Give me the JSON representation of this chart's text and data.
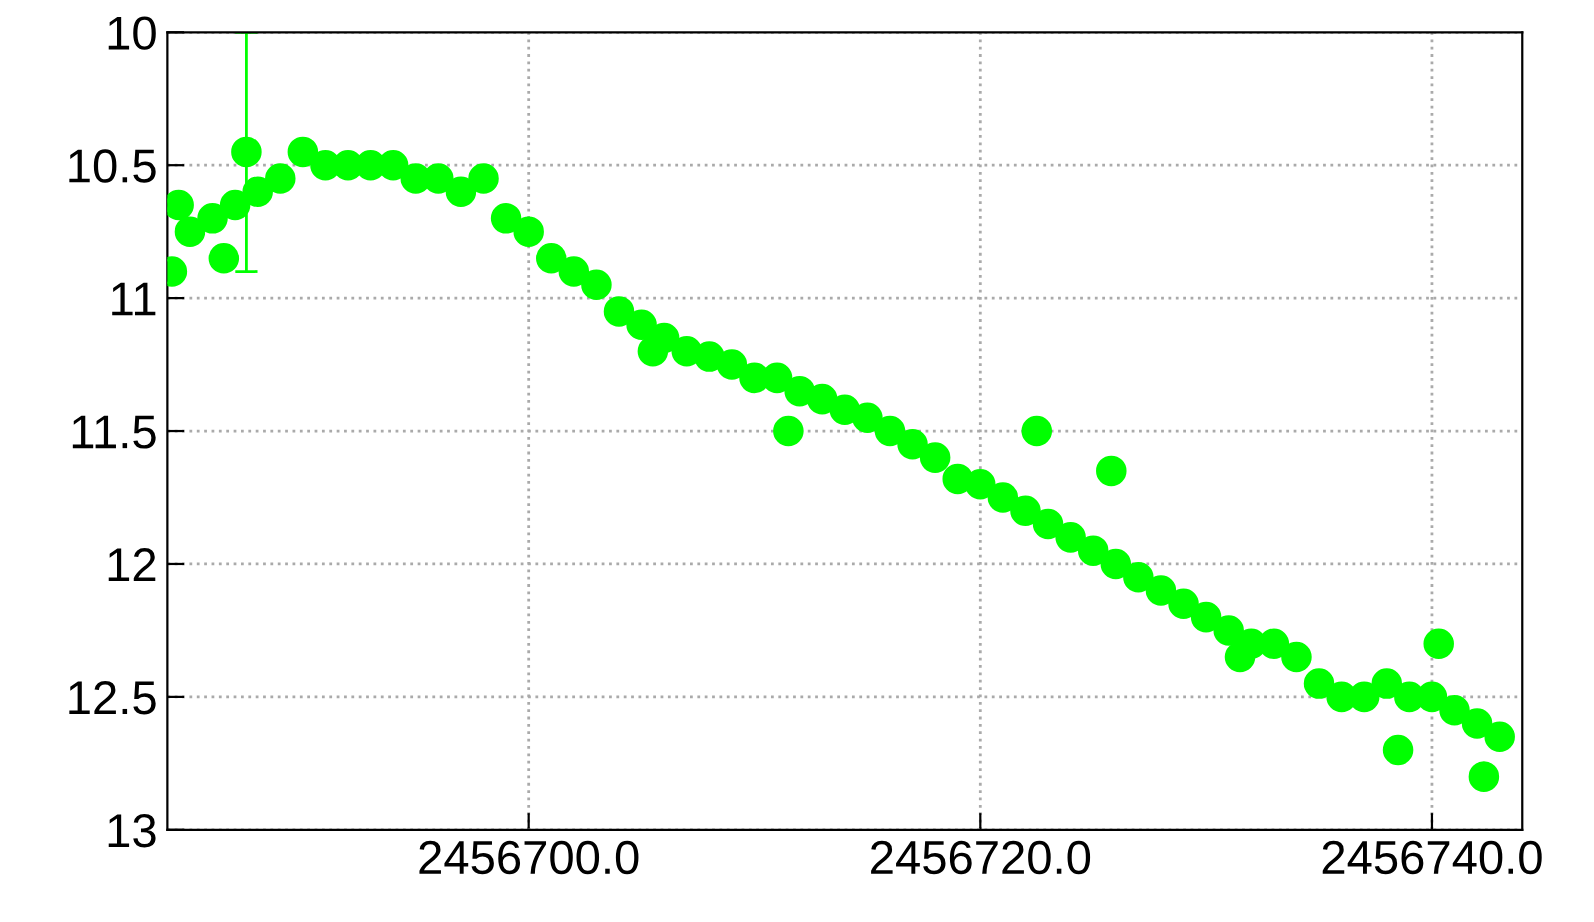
{
  "chart_data": {
    "type": "scatter",
    "x": [
      2456684.2,
      2456684.5,
      2456685,
      2456686,
      2456686.5,
      2456687,
      2456687.5,
      2456688,
      2456689,
      2456690,
      2456691,
      2456692,
      2456693,
      2456694,
      2456695,
      2456696,
      2456697,
      2456698,
      2456699,
      2456700,
      2456701,
      2456702,
      2456703,
      2456704,
      2456705,
      2456705.5,
      2456706,
      2456707,
      2456708,
      2456709,
      2456710,
      2456711,
      2456711.5,
      2456712,
      2456713,
      2456714,
      2456715,
      2456716,
      2456717,
      2456718,
      2456719,
      2456720,
      2456721,
      2456722,
      2456722.5,
      2456723,
      2456724,
      2456725,
      2456725.8,
      2456726,
      2456727,
      2456728,
      2456729,
      2456730,
      2456731,
      2456731.5,
      2456732,
      2456733,
      2456734,
      2456735,
      2456736,
      2456737,
      2456738,
      2456738.5,
      2456739,
      2456740,
      2456740.3,
      2456741,
      2456742,
      2456742.3,
      2456743
    ],
    "series": [
      {
        "color": "#00ff00",
        "values": [
          10.9,
          10.65,
          10.75,
          10.7,
          10.85,
          10.65,
          10.45,
          10.6,
          10.55,
          10.45,
          10.5,
          10.5,
          10.5,
          10.5,
          10.55,
          10.55,
          10.6,
          10.55,
          10.7,
          10.75,
          10.85,
          10.9,
          10.95,
          11.05,
          11.1,
          11.2,
          11.15,
          11.2,
          11.22,
          11.25,
          11.3,
          11.3,
          11.5,
          11.35,
          11.38,
          11.42,
          11.45,
          11.5,
          11.55,
          11.6,
          11.68,
          11.7,
          11.75,
          11.8,
          11.5,
          11.85,
          11.9,
          11.95,
          11.65,
          12.0,
          12.05,
          12.1,
          12.15,
          12.2,
          12.25,
          12.35,
          12.3,
          12.3,
          12.35,
          12.45,
          12.5,
          12.5,
          12.45,
          12.7,
          12.5,
          12.5,
          12.3,
          12.55,
          12.6,
          12.8,
          12.65
        ],
        "errors": [
          null,
          null,
          null,
          null,
          null,
          null,
          0.45,
          null,
          null,
          null,
          null,
          null,
          null,
          null,
          null,
          null,
          null,
          null,
          null,
          null,
          null,
          null,
          null,
          null,
          null,
          null,
          null,
          null,
          null,
          null,
          null,
          null,
          null,
          null,
          null,
          null,
          null,
          null,
          null,
          null,
          null,
          null,
          null,
          null,
          null,
          null,
          null,
          null,
          null,
          null,
          null,
          null,
          null,
          null,
          null,
          null,
          null,
          null,
          null,
          null,
          null,
          null,
          null,
          null,
          null,
          null,
          null,
          null,
          null,
          null,
          null
        ]
      }
    ],
    "xlim": [
      2456684,
      2456744
    ],
    "xticks": [
      {
        "value": 2456700,
        "label": "2456700.0"
      },
      {
        "value": 2456720,
        "label": "2456720.0"
      },
      {
        "value": 2456740,
        "label": "2456740.0"
      }
    ],
    "ylim": [
      13,
      10
    ],
    "yticks": [
      10,
      10.5,
      11,
      11.5,
      12,
      12.5,
      13
    ],
    "grid": true,
    "marker": "circle"
  }
}
